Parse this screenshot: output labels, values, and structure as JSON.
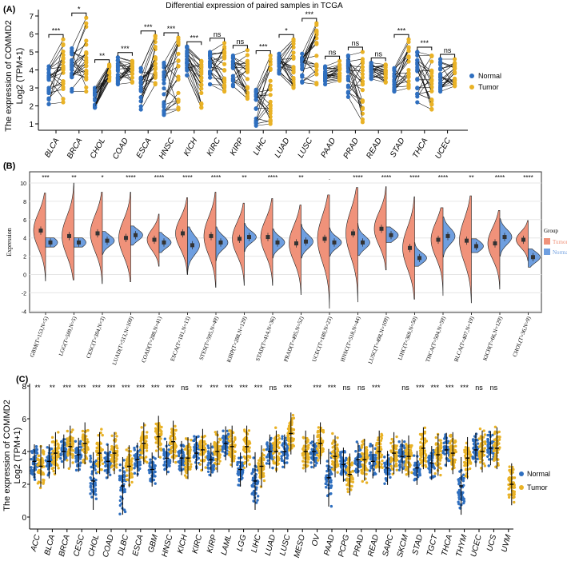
{
  "chart_data": [
    {
      "type": "scatter",
      "panel_label": "(A)",
      "title": "Differential expression of paired samples in TCGA",
      "ylabel_line1": "The expression of COMMD2",
      "ylabel_line2": "Log2 (TPM+1)",
      "ylim": [
        0.6,
        7.3
      ],
      "yticks": [
        1,
        2,
        3,
        4,
        5,
        6,
        7
      ],
      "legend": [
        {
          "name": "Normal",
          "color": "#2f6fbf"
        },
        {
          "name": "Tumor",
          "color": "#e9b226"
        }
      ],
      "legend_position": "right",
      "groups": [
        {
          "name": "BLCA",
          "normal": [
            2.1,
            4.2
          ],
          "tumor": [
            2.2,
            5.7
          ],
          "sig": "***"
        },
        {
          "name": "BRCA",
          "normal": [
            2.8,
            5.2
          ],
          "tumor": [
            2.8,
            6.9
          ],
          "sig": "*"
        },
        {
          "name": "CHOL",
          "normal": [
            1.9,
            3.0
          ],
          "tumor": [
            3.4,
            4.3
          ],
          "sig": "**"
        },
        {
          "name": "COAD",
          "normal": [
            3.2,
            4.7
          ],
          "tumor": [
            3.3,
            4.5
          ],
          "sig": "***"
        },
        {
          "name": "ESCA",
          "normal": [
            1.8,
            4.1
          ],
          "tumor": [
            3.2,
            5.9
          ],
          "sig": "***"
        },
        {
          "name": "HNSC",
          "normal": [
            1.5,
            4.4
          ],
          "tumor": [
            1.8,
            5.8
          ],
          "sig": "***"
        },
        {
          "name": "KICH",
          "normal": [
            3.7,
            5.3
          ],
          "tumor": [
            1.9,
            4.5
          ],
          "sig": "***"
        },
        {
          "name": "KIRC",
          "normal": [
            3.2,
            5.0
          ],
          "tumor": [
            2.8,
            5.5
          ],
          "sig": "ns"
        },
        {
          "name": "KIRP",
          "normal": [
            3.1,
            4.8
          ],
          "tumor": [
            2.4,
            5.1
          ],
          "sig": "ns"
        },
        {
          "name": "LIHC",
          "normal": [
            0.9,
            2.9
          ],
          "tumor": [
            1.0,
            4.8
          ],
          "sig": "***"
        },
        {
          "name": "LUAD",
          "normal": [
            3.8,
            4.9
          ],
          "tumor": [
            3.0,
            5.7
          ],
          "sig": "*"
        },
        {
          "name": "LUSC",
          "normal": [
            3.3,
            4.9
          ],
          "tumor": [
            3.2,
            6.6
          ],
          "sig": "***"
        },
        {
          "name": "PAAD",
          "normal": [
            3.2,
            4.2
          ],
          "tumor": [
            3.4,
            4.5
          ],
          "sig": "ns"
        },
        {
          "name": "PRAD",
          "normal": [
            2.5,
            4.8
          ],
          "tumor": [
            1.1,
            5.0
          ],
          "sig": "ns"
        },
        {
          "name": "READ",
          "normal": [
            3.5,
            4.4
          ],
          "tumor": [
            3.3,
            4.3
          ],
          "sig": "ns"
        },
        {
          "name": "STAD",
          "normal": [
            2.8,
            4.1
          ],
          "tumor": [
            3.0,
            5.7
          ],
          "sig": "***"
        },
        {
          "name": "THCA",
          "normal": [
            2.2,
            5.0
          ],
          "tumor": [
            1.8,
            4.8
          ],
          "sig": "***"
        },
        {
          "name": "UCEC",
          "normal": [
            2.8,
            4.6
          ],
          "tumor": [
            3.1,
            4.6
          ],
          "sig": "ns"
        }
      ]
    },
    {
      "type": "violin",
      "panel_label": "(B)",
      "ylabel": "Expression",
      "ylim": [
        -4,
        11
      ],
      "yticks": [
        -4,
        -2,
        0,
        2,
        4,
        6,
        8,
        10
      ],
      "legend_title": "Group",
      "legend": [
        {
          "name": "Tumor",
          "color": "#f0927a"
        },
        {
          "name": "Normal",
          "color": "#6f9fe0"
        }
      ],
      "legend_position": "right",
      "groups": [
        {
          "label": "GBM(T=153,N=5)",
          "tumor_mean": 4.8,
          "normal_mean": 3.5,
          "tumor_range": [
            -0.7,
            8.9
          ],
          "normal_range": [
            3.0,
            4.0
          ],
          "sig": "***"
        },
        {
          "label": "LGG(T=509,N=5)",
          "tumor_mean": 4.2,
          "normal_mean": 3.5,
          "tumor_range": [
            -0.6,
            10
          ],
          "normal_range": [
            3.0,
            4.0
          ],
          "sig": "**"
        },
        {
          "label": "CESC(T=304,N=3)",
          "tumor_mean": 4.5,
          "normal_mean": 3.7,
          "tumor_range": [
            -1,
            9
          ],
          "normal_range": [
            2.2,
            4.7
          ],
          "sig": "*"
        },
        {
          "label": "LUAD(T=513,N=109)",
          "tumor_mean": 4.0,
          "normal_mean": 4.3,
          "tumor_range": [
            -0.8,
            9
          ],
          "normal_range": [
            3.2,
            5.3
          ],
          "sig": "****"
        },
        {
          "label": "COAD(T=288,N=41)",
          "tumor_mean": 3.8,
          "normal_mean": 3.5,
          "tumor_range": [
            0.9,
            6.6
          ],
          "normal_range": [
            2.4,
            4.6
          ],
          "sig": "****"
        },
        {
          "label": "ESCA(T=181,N=13)",
          "tumor_mean": 4.5,
          "normal_mean": 3.2,
          "tumor_range": [
            0,
            8.4
          ],
          "normal_range": [
            0,
            5.2
          ],
          "sig": "****"
        },
        {
          "label": "STES(T=595,N=49)",
          "tumor_mean": 4.2,
          "normal_mean": 3.5,
          "tumor_range": [
            -1.4,
            9
          ],
          "normal_range": [
            1.5,
            5.2
          ],
          "sig": "****"
        },
        {
          "label": "KIRP(T=288,N=129)",
          "tumor_mean": 3.9,
          "normal_mean": 4.1,
          "tumor_range": [
            -1.2,
            7.8
          ],
          "normal_range": [
            2.5,
            5.6
          ],
          "sig": "**"
        },
        {
          "label": "STAD(T=414,N=36)",
          "tumor_mean": 4.1,
          "normal_mean": 3.5,
          "tumor_range": [
            -1.2,
            8.3
          ],
          "normal_range": [
            1.8,
            5.0
          ],
          "sig": "****"
        },
        {
          "label": "PRAD(T=495,N=52)",
          "tumor_mean": 3.4,
          "normal_mean": 3.6,
          "tumor_range": [
            -2.2,
            7.6
          ],
          "normal_range": [
            1.8,
            5.5
          ],
          "sig": "**"
        },
        {
          "label": "UCEC(T=180,N=23)",
          "tumor_mean": 3.9,
          "normal_mean": 3.5,
          "tumor_range": [
            -3.7,
            8.7
          ],
          "normal_range": [
            2.0,
            5.1
          ],
          "sig": "."
        },
        {
          "label": "HNSC(T=518,N=44)",
          "tumor_mean": 4.5,
          "normal_mean": 3.5,
          "tumor_range": [
            -3,
            9.5
          ],
          "normal_range": [
            2.1,
            5.6
          ],
          "sig": "****"
        },
        {
          "label": "LUSC(T=498,N=109)",
          "tumor_mean": 5.0,
          "normal_mean": 4.3,
          "tumor_range": [
            0.5,
            9.6
          ],
          "normal_range": [
            3.5,
            5.2
          ],
          "sig": "****"
        },
        {
          "label": "LIHC(T=369,N=50)",
          "tumor_mean": 2.9,
          "normal_mean": 1.8,
          "tumor_range": [
            -2.7,
            8.5
          ],
          "normal_range": [
            0.9,
            3.5
          ],
          "sig": "****"
        },
        {
          "label": "THCA(T=504,N=59)",
          "tumor_mean": 3.8,
          "normal_mean": 4.2,
          "tumor_range": [
            -2.3,
            7.3
          ],
          "normal_range": [
            1.9,
            6.3
          ],
          "sig": "****"
        },
        {
          "label": "BLCA(T=407,N=19)",
          "tumor_mean": 3.7,
          "normal_mean": 3.1,
          "tumor_range": [
            -3.1,
            8.6
          ],
          "normal_range": [
            2.4,
            3.9
          ],
          "sig": "**"
        },
        {
          "label": "KICH(T=66,N=129)",
          "tumor_mean": 3.4,
          "normal_mean": 4.1,
          "tumor_range": [
            -1.6,
            7
          ],
          "normal_range": [
            2.0,
            6.1
          ],
          "sig": "****"
        },
        {
          "label": "CHOL(T=36,N=9)",
          "tumor_mean": 3.8,
          "normal_mean": 1.9,
          "tumor_range": [
            1.5,
            5.9
          ],
          "normal_range": [
            0.8,
            2.8
          ],
          "sig": "****"
        }
      ]
    },
    {
      "type": "scatter",
      "panel_label": "(C)",
      "ylabel_line1": "The expression of COMMD2",
      "ylabel_line2": "Log2 (TPM+1)",
      "ylim": [
        -0.6,
        8.2
      ],
      "yticks": [
        0,
        2,
        4,
        6,
        8
      ],
      "legend": [
        {
          "name": "Normal",
          "color": "#2f6fbf"
        },
        {
          "name": "Tumor",
          "color": "#e9b226"
        }
      ],
      "legend_position": "right",
      "groups": [
        {
          "name": "ACC",
          "normal": 3.4,
          "tumor": 3.1,
          "sig": "**"
        },
        {
          "name": "BLCA",
          "normal": 3.4,
          "tumor": 3.9,
          "sig": "**"
        },
        {
          "name": "BRCA",
          "normal": 4.0,
          "tumor": 4.3,
          "sig": "***"
        },
        {
          "name": "CESC",
          "normal": 3.8,
          "tumor": 4.5,
          "sig": "***"
        },
        {
          "name": "CHOL",
          "normal": 2.2,
          "tumor": 3.9,
          "sig": "***"
        },
        {
          "name": "COAD",
          "normal": 3.4,
          "tumor": 3.9,
          "sig": "***"
        },
        {
          "name": "DLBC",
          "normal": 1.9,
          "tumor": 3.1,
          "sig": "***"
        },
        {
          "name": "ESCA",
          "normal": 3.5,
          "tumor": 4.5,
          "sig": "***"
        },
        {
          "name": "GBM",
          "normal": 2.9,
          "tumor": 4.9,
          "sig": "***"
        },
        {
          "name": "HNSC",
          "normal": 3.6,
          "tumor": 4.6,
          "sig": "***"
        },
        {
          "name": "KICH",
          "normal": 3.6,
          "tumor": 3.6,
          "sig": "ns"
        },
        {
          "name": "KIRC",
          "normal": 3.9,
          "tumor": 4.1,
          "sig": "**"
        },
        {
          "name": "KIRP",
          "normal": 3.5,
          "tumor": 4.0,
          "sig": "***"
        },
        {
          "name": "LAML",
          "normal": 4.5,
          "tumor": 4.3,
          "sig": "***"
        },
        {
          "name": "LGG",
          "normal": 2.9,
          "tumor": 4.3,
          "sig": "***"
        },
        {
          "name": "LIHC",
          "normal": 2.2,
          "tumor": 3.1,
          "sig": "***"
        },
        {
          "name": "LUAD",
          "normal": 4.0,
          "tumor": 4.0,
          "sig": "ns"
        },
        {
          "name": "LUSC",
          "normal": 4.0,
          "tumor": 5.1,
          "sig": "***"
        },
        {
          "name": "MESO",
          "normal": null,
          "tumor": 4.0,
          "sig": ""
        },
        {
          "name": "OV",
          "normal": 4.0,
          "tumor": 4.5,
          "sig": "***"
        },
        {
          "name": "PAAD",
          "normal": 2.4,
          "tumor": 3.7,
          "sig": "***"
        },
        {
          "name": "PCPG",
          "normal": 3.2,
          "tumor": 2.6,
          "sig": "ns"
        },
        {
          "name": "PRAD",
          "normal": 3.5,
          "tumor": 3.5,
          "sig": "ns"
        },
        {
          "name": "READ",
          "normal": 3.4,
          "tumor": 4.0,
          "sig": "***"
        },
        {
          "name": "SARC",
          "normal": 3.0,
          "tumor": 3.9,
          "sig": ""
        },
        {
          "name": "SKCM",
          "normal": 3.7,
          "tumor": 3.7,
          "sig": "ns"
        },
        {
          "name": "STAD",
          "normal": 3.0,
          "tumor": 4.2,
          "sig": "***"
        },
        {
          "name": "TGCT",
          "normal": 3.3,
          "tumor": 3.8,
          "sig": "***"
        },
        {
          "name": "THCA",
          "normal": 4.1,
          "tumor": 3.9,
          "sig": "***"
        },
        {
          "name": "THYM",
          "normal": 1.9,
          "tumor": 3.6,
          "sig": "***"
        },
        {
          "name": "UCEC",
          "normal": 4.1,
          "tumor": 4.0,
          "sig": "ns"
        },
        {
          "name": "UCS",
          "normal": 4.2,
          "tumor": 4.2,
          "sig": "ns"
        },
        {
          "name": "UVM",
          "normal": null,
          "tumor": 2.0,
          "sig": ""
        }
      ]
    }
  ]
}
